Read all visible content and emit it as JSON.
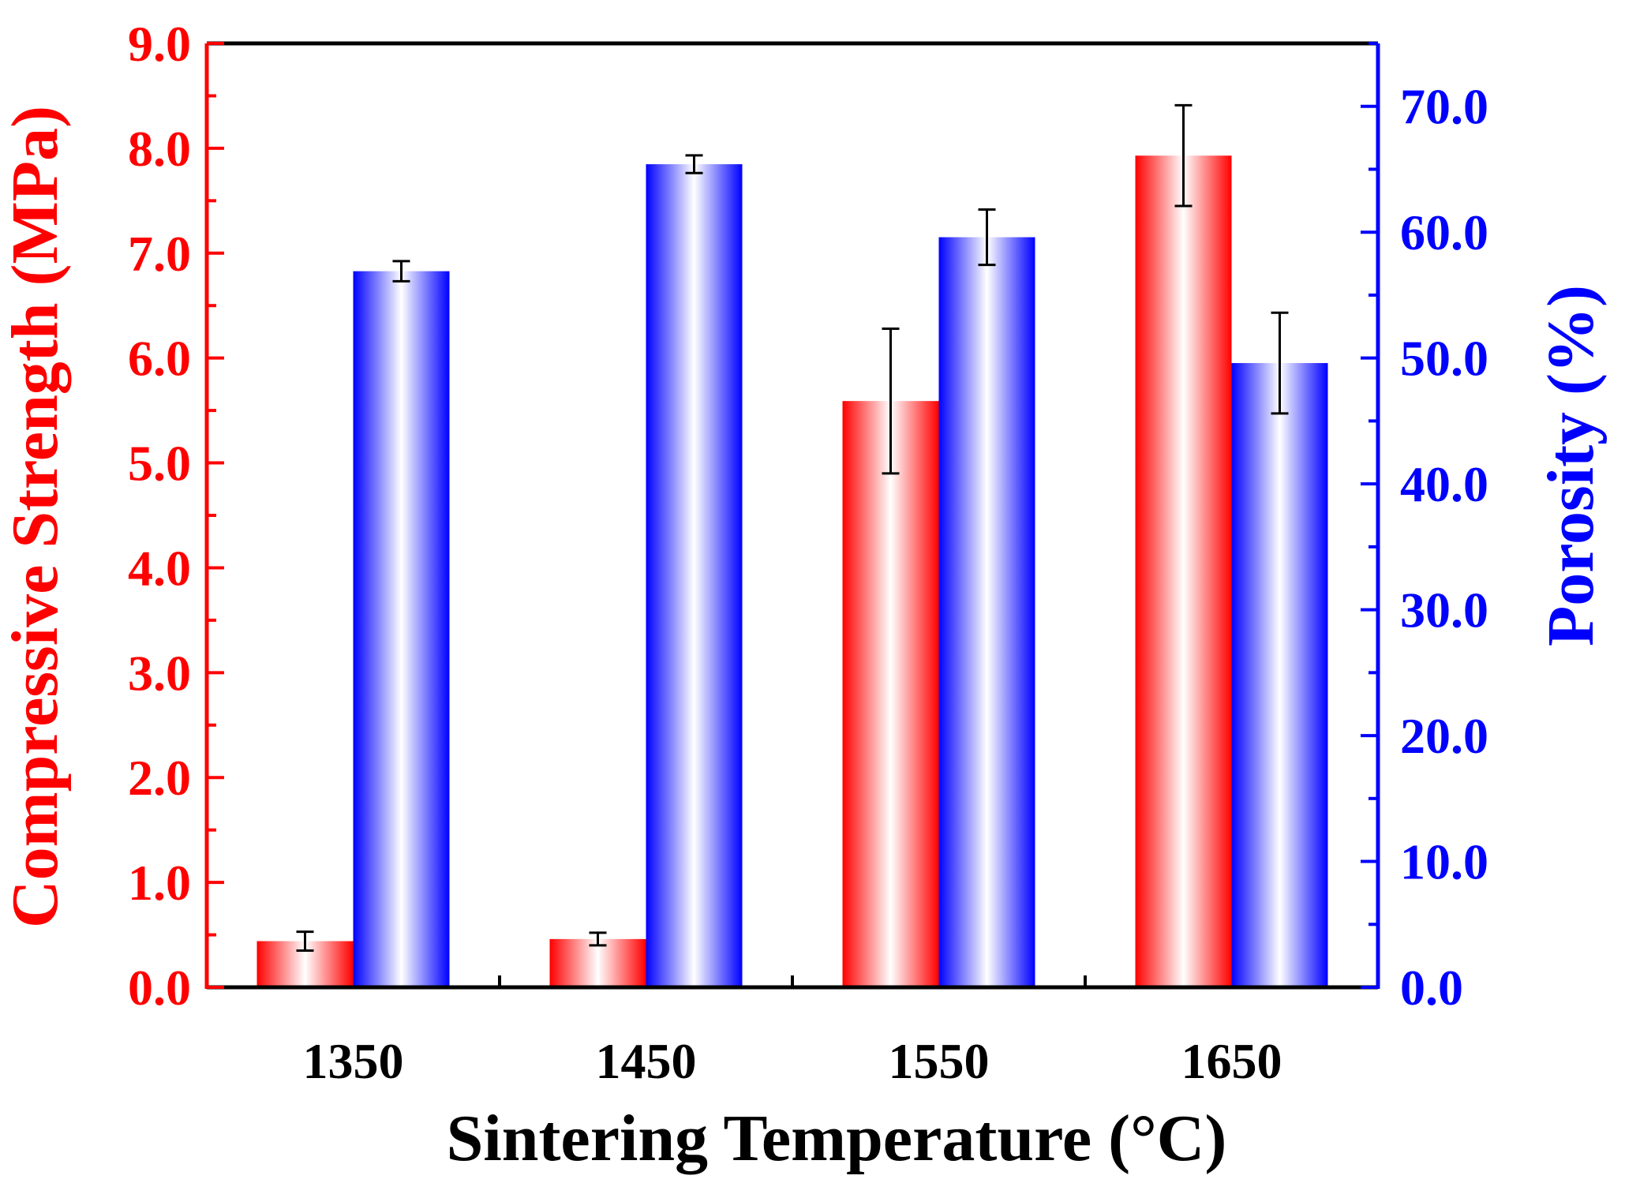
{
  "chart_data": {
    "type": "bar",
    "title": "",
    "xlabel": "Sintering Temperature (°C)",
    "ylabel_left": "Compressive Strength (MPa)",
    "ylabel_right": "Porosity (%)",
    "categories": [
      "1350",
      "1450",
      "1550",
      "1650"
    ],
    "ylim_left": [
      0,
      9
    ],
    "ylim_right": [
      0,
      75
    ],
    "yticks_left": [
      "0.0",
      "1.0",
      "2.0",
      "3.0",
      "4.0",
      "5.0",
      "6.0",
      "7.0",
      "8.0",
      "9.0"
    ],
    "yticks_right": [
      "0.0",
      "10.0",
      "20.0",
      "30.0",
      "40.0",
      "50.0",
      "60.0",
      "70.0"
    ],
    "grid": false,
    "legend": "none",
    "series": [
      {
        "name": "Compressive Strength",
        "axis": "left",
        "color": "#ff0000",
        "values": [
          0.44,
          0.46,
          5.59,
          7.93
        ],
        "errors": [
          0.09,
          0.06,
          0.69,
          0.48
        ]
      },
      {
        "name": "Porosity",
        "axis": "right",
        "color": "#0000ff",
        "values": [
          56.9,
          65.4,
          59.6,
          49.6
        ],
        "errors": [
          0.8,
          0.7,
          2.2,
          4.0
        ]
      }
    ],
    "colors": {
      "left_axis": "#ff0000",
      "right_axis": "#0000ff",
      "frame": "#000000"
    }
  }
}
